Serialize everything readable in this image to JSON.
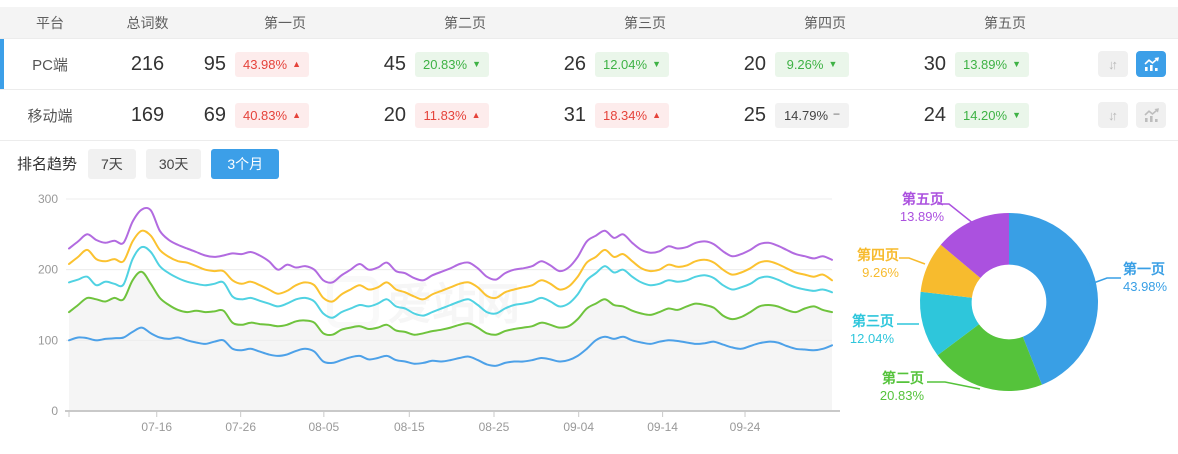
{
  "table": {
    "headers": [
      "平台",
      "总词数",
      "第一页",
      "第二页",
      "第三页",
      "第四页",
      "第五页"
    ],
    "rows": [
      {
        "platform": "PC端",
        "total": "216",
        "selected": true,
        "trend_active": true,
        "pages": [
          {
            "count": "95",
            "pct": "43.98%",
            "dir": "up",
            "tone": "red"
          },
          {
            "count": "45",
            "pct": "20.83%",
            "dir": "down",
            "tone": "green"
          },
          {
            "count": "26",
            "pct": "12.04%",
            "dir": "down",
            "tone": "green"
          },
          {
            "count": "20",
            "pct": "9.26%",
            "dir": "down",
            "tone": "green"
          },
          {
            "count": "30",
            "pct": "13.89%",
            "dir": "down",
            "tone": "green"
          }
        ]
      },
      {
        "platform": "移动端",
        "total": "169",
        "selected": false,
        "trend_active": false,
        "pages": [
          {
            "count": "69",
            "pct": "40.83%",
            "dir": "up",
            "tone": "red"
          },
          {
            "count": "20",
            "pct": "11.83%",
            "dir": "up",
            "tone": "red"
          },
          {
            "count": "31",
            "pct": "18.34%",
            "dir": "up",
            "tone": "red"
          },
          {
            "count": "25",
            "pct": "14.79%",
            "dir": "flat",
            "tone": "gray"
          },
          {
            "count": "24",
            "pct": "14.20%",
            "dir": "down",
            "tone": "green"
          }
        ]
      }
    ],
    "sort_icon": "↓↑"
  },
  "trend": {
    "label": "排名趋势",
    "ranges": [
      {
        "label": "7天",
        "active": false
      },
      {
        "label": "30天",
        "active": false
      },
      {
        "label": "3个月",
        "active": true
      }
    ]
  },
  "watermark": "爱站网",
  "colors": {
    "accent_blue": "#3c9fe8",
    "badge_red_text": "#e5433b",
    "badge_red_bg": "#fdecec",
    "badge_green_text": "#3eb245",
    "badge_green_bg": "#eaf6ea",
    "grid_line": "#ececec",
    "axis_line": "#c9c9c9"
  },
  "chart_data": [
    {
      "type": "line",
      "title": "排名趋势 (3个月)",
      "ylim": [
        0,
        300
      ],
      "yticks": [
        0,
        100,
        200,
        300
      ],
      "grid": true,
      "x_tick_labels": [
        "07-16",
        "07-26",
        "08-05",
        "08-15",
        "08-25",
        "09-04",
        "09-14",
        "09-24"
      ],
      "x_tick_pos": [
        0.115,
        0.225,
        0.334,
        0.446,
        0.557,
        0.668,
        0.778,
        0.886
      ],
      "series": [
        {
          "name": "line-purple",
          "color": "#b26be0",
          "values": [
            230,
            240,
            250,
            242,
            238,
            241,
            238,
            268,
            285,
            284,
            255,
            242,
            235,
            230,
            225,
            220,
            218,
            220,
            223,
            222,
            225,
            220,
            212,
            200,
            207,
            203,
            205,
            200,
            185,
            182,
            192,
            200,
            208,
            200,
            203,
            210,
            198,
            195,
            188,
            185,
            192,
            197,
            202,
            208,
            210,
            202,
            190,
            186,
            195,
            200,
            202,
            205,
            212,
            206,
            198,
            203,
            218,
            240,
            248,
            255,
            245,
            250,
            238,
            228,
            224,
            226,
            233,
            230,
            232,
            238,
            240,
            236,
            226,
            219,
            222,
            228,
            236,
            238,
            234,
            228,
            222,
            219,
            216,
            219,
            214
          ]
        },
        {
          "name": "line-yellow",
          "color": "#fbc230",
          "values": [
            208,
            218,
            228,
            215,
            212,
            215,
            212,
            240,
            255,
            248,
            228,
            218,
            212,
            210,
            205,
            200,
            198,
            198,
            185,
            180,
            183,
            178,
            172,
            166,
            170,
            178,
            182,
            178,
            160,
            155,
            165,
            172,
            178,
            172,
            175,
            182,
            172,
            168,
            162,
            158,
            165,
            170,
            175,
            180,
            182,
            175,
            163,
            160,
            168,
            172,
            175,
            178,
            185,
            180,
            172,
            176,
            190,
            210,
            218,
            228,
            218,
            222,
            212,
            202,
            198,
            200,
            207,
            204,
            206,
            212,
            214,
            210,
            200,
            193,
            196,
            202,
            210,
            212,
            208,
            202,
            196,
            193,
            190,
            193,
            185
          ]
        },
        {
          "name": "line-cyan",
          "color": "#50d2e2",
          "values": [
            182,
            186,
            190,
            178,
            183,
            180,
            179,
            215,
            232,
            225,
            205,
            195,
            188,
            183,
            180,
            178,
            180,
            182,
            162,
            158,
            160,
            156,
            152,
            148,
            152,
            158,
            160,
            155,
            138,
            132,
            140,
            145,
            150,
            148,
            152,
            158,
            148,
            145,
            138,
            135,
            140,
            145,
            150,
            155,
            158,
            150,
            140,
            138,
            145,
            150,
            152,
            155,
            160,
            155,
            148,
            152,
            165,
            185,
            195,
            205,
            196,
            200,
            190,
            182,
            178,
            180,
            185,
            183,
            185,
            190,
            192,
            188,
            178,
            172,
            175,
            180,
            188,
            190,
            186,
            180,
            175,
            172,
            170,
            172,
            168
          ]
        },
        {
          "name": "line-green",
          "color": "#6fc33d",
          "area": "#f5f5f5",
          "values": [
            140,
            150,
            160,
            158,
            155,
            160,
            158,
            185,
            197,
            180,
            160,
            150,
            143,
            140,
            142,
            140,
            141,
            142,
            125,
            122,
            125,
            123,
            122,
            120,
            122,
            127,
            128,
            125,
            110,
            108,
            115,
            118,
            120,
            116,
            118,
            122,
            114,
            112,
            108,
            110,
            113,
            115,
            118,
            122,
            124,
            118,
            110,
            108,
            113,
            116,
            118,
            120,
            125,
            122,
            118,
            120,
            130,
            145,
            152,
            158,
            150,
            148,
            142,
            138,
            136,
            140,
            145,
            143,
            148,
            152,
            150,
            146,
            135,
            130,
            133,
            140,
            148,
            150,
            148,
            143,
            140,
            145,
            148,
            143,
            140
          ]
        },
        {
          "name": "line-blue",
          "color": "#4da1e8",
          "values": [
            100,
            104,
            103,
            100,
            102,
            103,
            104,
            112,
            118,
            110,
            104,
            102,
            104,
            100,
            97,
            95,
            98,
            100,
            88,
            86,
            88,
            84,
            80,
            78,
            80,
            85,
            88,
            84,
            70,
            68,
            72,
            76,
            78,
            73,
            75,
            78,
            72,
            70,
            67,
            68,
            71,
            70,
            72,
            75,
            77,
            72,
            66,
            64,
            68,
            70,
            70,
            72,
            75,
            73,
            70,
            72,
            78,
            88,
            100,
            105,
            102,
            105,
            100,
            97,
            95,
            98,
            100,
            99,
            97,
            95,
            96,
            98,
            94,
            90,
            88,
            92,
            96,
            98,
            97,
            92,
            88,
            87,
            86,
            88,
            93
          ]
        }
      ]
    },
    {
      "type": "pie",
      "labels": [
        "第一页",
        "第二页",
        "第三页",
        "第四页",
        "第五页"
      ],
      "values": [
        43.98,
        20.83,
        12.04,
        9.26,
        13.89
      ],
      "display": [
        "43.98%",
        "20.83%",
        "12.04%",
        "9.26%",
        "13.89%"
      ],
      "colors": [
        "#399fe5",
        "#55c33b",
        "#2ec6db",
        "#f7bb2e",
        "#ab51df"
      ],
      "inner_radius_ratio": 0.42,
      "start_angle": "top",
      "direction": "clockwise"
    }
  ]
}
